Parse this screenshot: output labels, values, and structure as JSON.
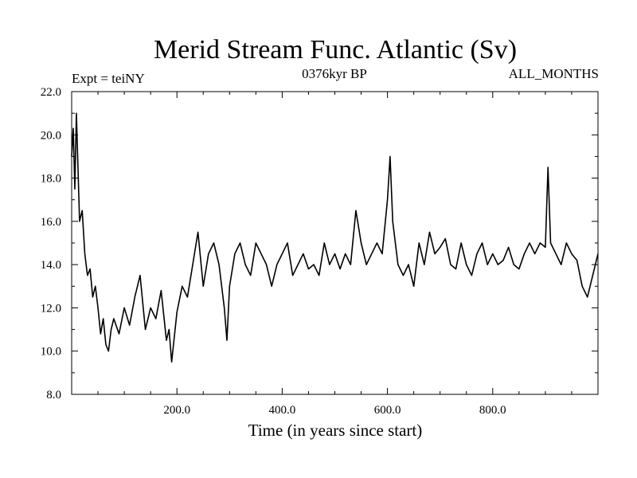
{
  "chart_data": {
    "type": "line",
    "title": "Merid Stream Func. Atlantic (Sv)",
    "subtitle_left": "Expt = teiNY",
    "subtitle_center": "0376kyr BP",
    "subtitle_right": "ALL_MONTHS",
    "xlabel": "Time (in years since start)",
    "ylabel": "",
    "xlim": [
      0,
      1000
    ],
    "ylim": [
      8.0,
      22.0
    ],
    "xticks": [
      200,
      400,
      600,
      800
    ],
    "xtick_labels": [
      "200.0",
      "400.0",
      "600.0",
      "800.0"
    ],
    "yticks": [
      8,
      10,
      12,
      14,
      16,
      18,
      20,
      22
    ],
    "ytick_labels": [
      "8.0",
      "10.0",
      "12.0",
      "14.0",
      "16.0",
      "18.0",
      "20.0",
      "22.0"
    ],
    "grid": false,
    "line_color": "#000000",
    "series": [
      {
        "name": "Merid Stream Func. Atlantic",
        "x": [
          0,
          3,
          6,
          9,
          12,
          15,
          20,
          25,
          30,
          35,
          40,
          45,
          50,
          55,
          60,
          65,
          70,
          75,
          80,
          90,
          100,
          110,
          120,
          130,
          140,
          150,
          160,
          170,
          180,
          185,
          190,
          200,
          210,
          220,
          230,
          240,
          250,
          260,
          270,
          280,
          290,
          295,
          300,
          310,
          320,
          330,
          340,
          350,
          360,
          370,
          380,
          390,
          400,
          410,
          420,
          430,
          440,
          450,
          460,
          470,
          480,
          490,
          500,
          510,
          520,
          530,
          540,
          550,
          560,
          570,
          580,
          590,
          600,
          605,
          610,
          615,
          620,
          630,
          640,
          650,
          660,
          670,
          680,
          690,
          700,
          710,
          720,
          730,
          740,
          750,
          760,
          770,
          780,
          790,
          800,
          810,
          820,
          830,
          840,
          850,
          860,
          870,
          880,
          890,
          900,
          905,
          910,
          920,
          930,
          940,
          950,
          960,
          970,
          980,
          990,
          1000
        ],
        "values": [
          19.0,
          20.3,
          17.5,
          21.0,
          18.5,
          16.0,
          16.5,
          14.5,
          13.5,
          13.8,
          12.5,
          13.0,
          12.0,
          10.8,
          11.5,
          10.3,
          10.0,
          11.0,
          11.5,
          10.8,
          12.0,
          11.2,
          12.5,
          13.5,
          11.0,
          12.0,
          11.5,
          12.8,
          10.5,
          11.0,
          9.5,
          11.8,
          13.0,
          12.5,
          14.0,
          15.5,
          13.0,
          14.5,
          15.0,
          14.0,
          12.0,
          10.5,
          13.0,
          14.5,
          15.0,
          14.0,
          13.5,
          15.0,
          14.5,
          14.0,
          13.0,
          14.0,
          14.5,
          15.0,
          13.5,
          14.0,
          14.5,
          13.8,
          14.0,
          13.5,
          15.0,
          14.0,
          14.5,
          13.8,
          14.5,
          14.0,
          16.5,
          15.0,
          14.0,
          14.5,
          15.0,
          14.5,
          17.0,
          19.0,
          16.0,
          15.0,
          14.0,
          13.5,
          14.0,
          13.0,
          15.0,
          14.0,
          15.5,
          14.5,
          14.8,
          15.2,
          14.0,
          13.8,
          15.0,
          14.0,
          13.5,
          14.5,
          15.0,
          14.0,
          14.5,
          14.0,
          14.2,
          14.8,
          14.0,
          13.8,
          14.5,
          15.0,
          14.5,
          15.0,
          14.8,
          18.5,
          15.0,
          14.5,
          14.0,
          15.0,
          14.5,
          14.2,
          13.0,
          12.5,
          13.5,
          14.5
        ]
      }
    ]
  }
}
